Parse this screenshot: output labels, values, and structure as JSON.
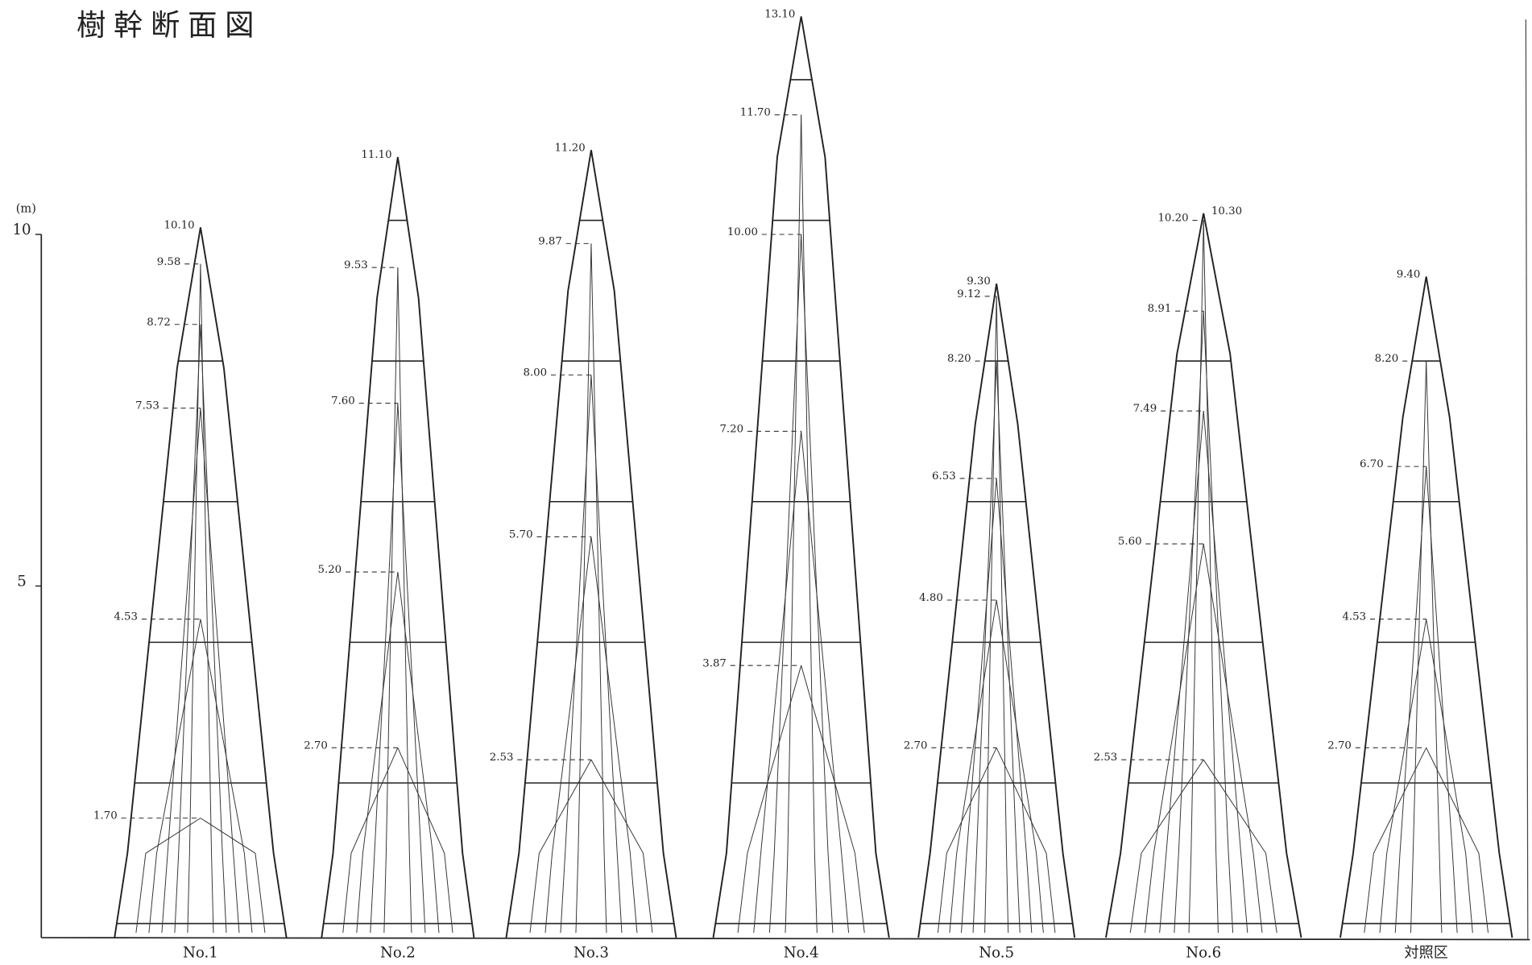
{
  "title": "樹幹断面図",
  "axis": {
    "unit": "(m)",
    "ticks": [
      "10",
      "5"
    ]
  },
  "trees": [
    {
      "name": "No.1",
      "heights": [
        "10.10",
        "9.58",
        "8.72",
        "7.53",
        "4.53",
        "1.70"
      ]
    },
    {
      "name": "No.2",
      "heights": [
        "11.10",
        "9.53",
        "7.60",
        "5.20",
        "2.70"
      ]
    },
    {
      "name": "No.3",
      "heights": [
        "11.20",
        "9.87",
        "8.00",
        "5.70",
        "2.53"
      ]
    },
    {
      "name": "No.4",
      "heights": [
        "13.10",
        "11.70",
        "10.00",
        "7.20",
        "3.87"
      ]
    },
    {
      "name": "No.5",
      "heights": [
        "9.30",
        "9.12",
        "8.20",
        "6.53",
        "4.80",
        "2.70"
      ]
    },
    {
      "name": "No.6",
      "heights": [
        "10.20",
        "10.30",
        "8.91",
        "7.49",
        "5.60",
        "2.53"
      ]
    },
    {
      "name": "対照区",
      "heights": [
        "9.40",
        "8.20",
        "6.70",
        "4.53",
        "2.70"
      ]
    }
  ]
}
